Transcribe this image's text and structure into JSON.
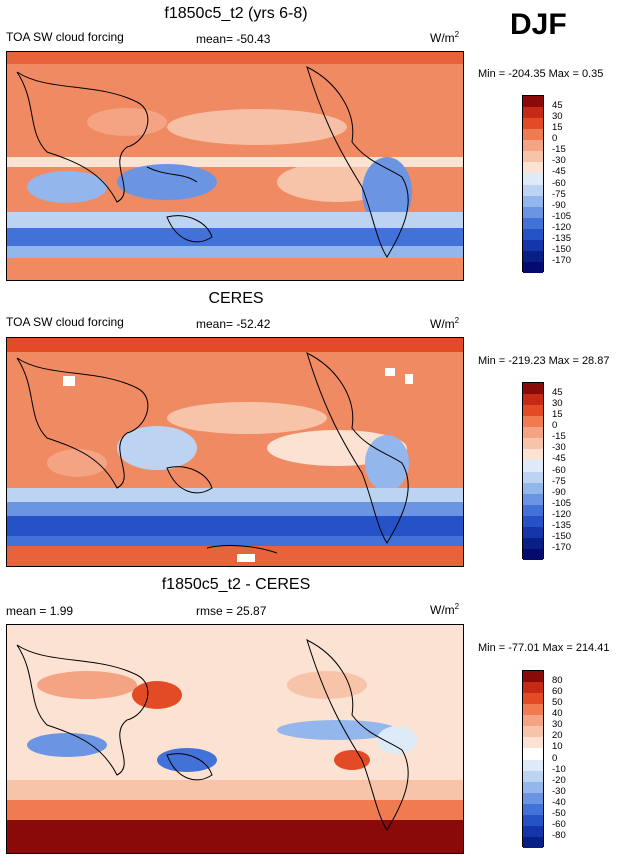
{
  "season": "DJF",
  "panels": [
    {
      "title": "f1850c5_t2 (yrs 6-8)",
      "left_label": "TOA SW cloud forcing",
      "center_label": "mean= -50.43",
      "unit": "W/m",
      "unit_exp": "2",
      "minmax": "Min = -204.35 Max =   0.35"
    },
    {
      "title": "CERES",
      "left_label": "TOA SW cloud forcing",
      "center_label": "mean= -52.42",
      "unit": "W/m",
      "unit_exp": "2",
      "minmax": "Min = -219.23 Max =  28.87"
    },
    {
      "title": "f1850c5_t2 - CERES",
      "left_label": "mean =   1.99",
      "center_label": "rmse =  25.87",
      "unit": "W/m",
      "unit_exp": "2",
      "minmax": "Min = -77.01 Max = 214.41"
    }
  ],
  "chart_data": [
    {
      "type": "heatmap",
      "title": "f1850c5_t2 (yrs 6-8)",
      "variable": "TOA SW cloud forcing",
      "mean": -50.43,
      "min": -204.35,
      "max": 0.35,
      "colorbar_levels": [
        "45",
        "30",
        "15",
        "0",
        "-15",
        "-30",
        "-45",
        "-60",
        "-75",
        "-90",
        "-105",
        "-120",
        "-135",
        "-150",
        "-170"
      ],
      "colorbar_colors": [
        "#8a0a0a",
        "#c62a17",
        "#e34a26",
        "#f07b50",
        "#f4a383",
        "#f7c4aa",
        "#fbe2d2",
        "#ddeaf7",
        "#bcd3f2",
        "#93b6ec",
        "#6b95e3",
        "#4272d8",
        "#2552c6",
        "#1436aa",
        "#081f86",
        "#050a6e"
      ]
    },
    {
      "type": "heatmap",
      "title": "CERES",
      "variable": "TOA SW cloud forcing",
      "mean": -52.42,
      "min": -219.23,
      "max": 28.87,
      "colorbar_levels": [
        "45",
        "30",
        "15",
        "0",
        "-15",
        "-30",
        "-45",
        "-60",
        "-75",
        "-90",
        "-105",
        "-120",
        "-135",
        "-150",
        "-170"
      ],
      "colorbar_colors": [
        "#8a0a0a",
        "#c62a17",
        "#e34a26",
        "#f07b50",
        "#f4a383",
        "#f7c4aa",
        "#fbe2d2",
        "#ddeaf7",
        "#bcd3f2",
        "#93b6ec",
        "#6b95e3",
        "#4272d8",
        "#2552c6",
        "#1436aa",
        "#081f86",
        "#050a6e"
      ]
    },
    {
      "type": "heatmap",
      "title": "f1850c5_t2 - CERES",
      "mean": 1.99,
      "rmse": 25.87,
      "min": -77.01,
      "max": 214.41,
      "colorbar_levels": [
        "80",
        "60",
        "50",
        "40",
        "30",
        "20",
        "10",
        "0",
        "-10",
        "-20",
        "-30",
        "-40",
        "-50",
        "-60",
        "-80"
      ],
      "colorbar_colors": [
        "#8a0a0a",
        "#c62a17",
        "#e34a26",
        "#f07b50",
        "#f4a383",
        "#f7c4aa",
        "#fbe2d2",
        "#ffffff",
        "#ddeaf7",
        "#bcd3f2",
        "#93b6ec",
        "#6b95e3",
        "#4272d8",
        "#2552c6",
        "#1436aa",
        "#081f86"
      ]
    }
  ]
}
